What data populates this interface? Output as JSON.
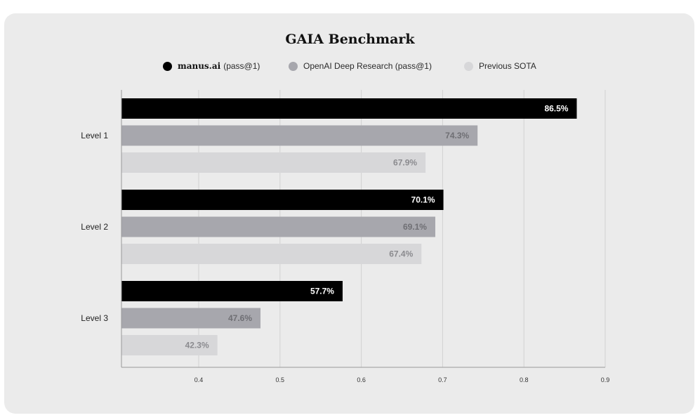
{
  "chart_data": {
    "type": "bar",
    "orientation": "horizontal",
    "title": "GAIA Benchmark",
    "categories": [
      "Level 1",
      "Level 2",
      "Level 3"
    ],
    "series": [
      {
        "name": "manus.ai",
        "name_suffix": "(pass@1)",
        "color": "#000000",
        "label_color": "#ffffff",
        "values": [
          0.865,
          0.701,
          0.577
        ],
        "value_labels": [
          "86.5%",
          "70.1%",
          "57.7%"
        ]
      },
      {
        "name": "OpenAI Deep Research (pass@1)",
        "name_suffix": "",
        "color": "#a7a7ad",
        "label_color": "#6f6f74",
        "values": [
          0.743,
          0.691,
          0.476
        ],
        "value_labels": [
          "74.3%",
          "69.1%",
          "47.6%"
        ]
      },
      {
        "name": "Previous SOTA",
        "name_suffix": "",
        "color": "#d7d7d9",
        "label_color": "#8b8b8f",
        "values": [
          0.679,
          0.674,
          0.423
        ],
        "value_labels": [
          "67.9%",
          "67.4%",
          "42.3%"
        ]
      }
    ],
    "xlim": [
      0.305,
      0.9
    ],
    "xticks": [
      0.4,
      0.5,
      0.6,
      0.7,
      0.8,
      0.9
    ],
    "xtick_labels": [
      "0.4",
      "0.5",
      "0.6",
      "0.7",
      "0.8",
      "0.9"
    ],
    "grid": true,
    "legend_position": "top-center"
  }
}
